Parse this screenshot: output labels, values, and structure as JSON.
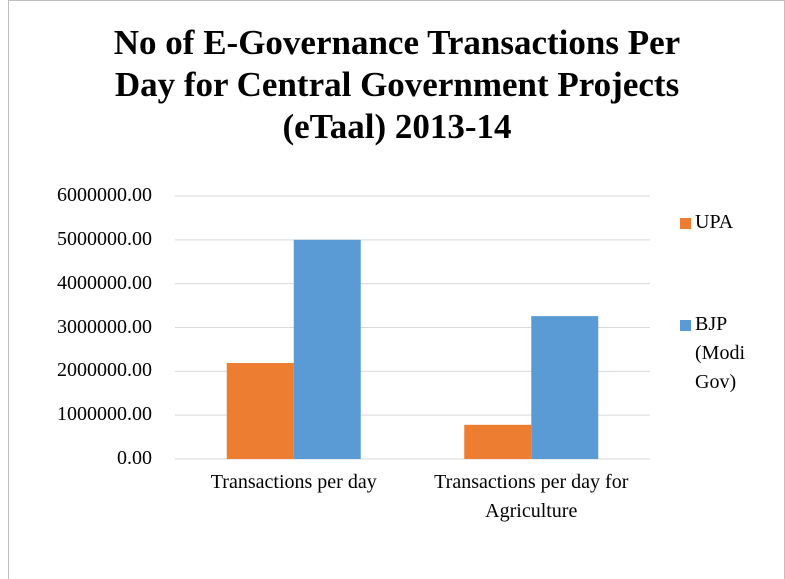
{
  "chart_data": {
    "type": "bar",
    "title": "No of E-Governance Transactions Per Day for Central Government Projects (eTaal) 2013-14",
    "categories": [
      "Transactions per day",
      "Transactions per day for Agriculture"
    ],
    "series": [
      {
        "name": "UPA",
        "color": "#ed7d31",
        "values": [
          2190000,
          780000
        ]
      },
      {
        "name": "BJP (Modi Gov)",
        "color": "#5b9bd5",
        "values": [
          5000000,
          3260000
        ]
      }
    ],
    "ylim": [
      0,
      6000000
    ],
    "yticks": [
      {
        "value": 0,
        "label": "0.00"
      },
      {
        "value": 1000000,
        "label": "1000000.00"
      },
      {
        "value": 2000000,
        "label": "2000000.00"
      },
      {
        "value": 3000000,
        "label": "3000000.00"
      },
      {
        "value": 4000000,
        "label": "4000000.00"
      },
      {
        "value": 5000000,
        "label": "5000000.00"
      },
      {
        "value": 6000000,
        "label": "6000000.00"
      }
    ],
    "grid": true,
    "legend": "right"
  }
}
